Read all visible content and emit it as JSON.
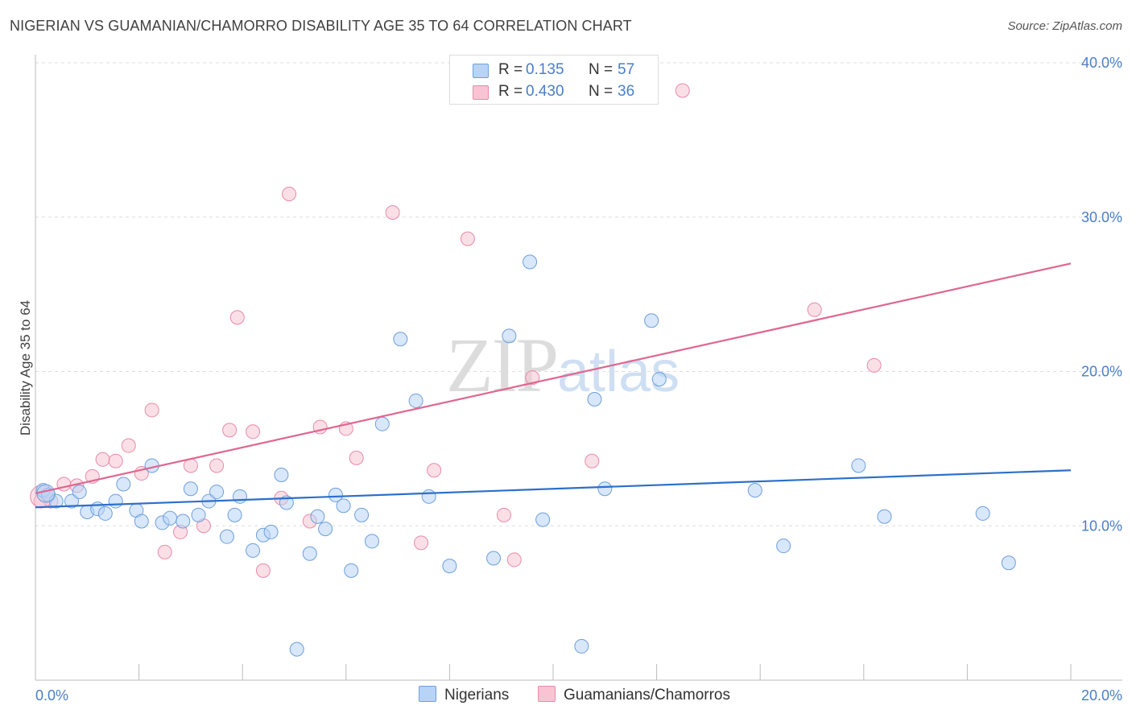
{
  "header": {
    "title": "NIGERIAN VS GUAMANIAN/CHAMORRO DISABILITY AGE 35 TO 64 CORRELATION CHART",
    "source": "Source: ZipAtlas.com"
  },
  "watermark": {
    "zip": "ZIP",
    "atlas": "atlas"
  },
  "colors": {
    "blue_fill": "#b8d3f5",
    "blue_stroke": "#6e9fdb",
    "blue_line": "#2d6fcb",
    "pink_fill": "#f8c4d4",
    "pink_stroke": "#e98aa8",
    "pink_line": "#e06690",
    "tick_text": "#4a7ec8",
    "grid": "#dddddd"
  },
  "legend": {
    "rows": [
      {
        "r_label": "R =",
        "r_value": "0.135",
        "n_label": "N =",
        "n_value": "57"
      },
      {
        "r_label": "R =",
        "r_value": "0.430",
        "n_label": "N =",
        "n_value": "36"
      }
    ]
  },
  "bottom_legend": {
    "series1": "Nigerians",
    "series2": "Guamanians/Chamorros"
  },
  "chart_data": {
    "type": "scatter",
    "title": "NIGERIAN VS GUAMANIAN/CHAMORRO DISABILITY AGE 35 TO 64 CORRELATION CHART",
    "xlabel": "",
    "ylabel": "Disability Age 35 to 64",
    "xlim": [
      0,
      20
    ],
    "ylim": [
      0,
      40
    ],
    "x_tick_labels": [
      "0.0%",
      "20.0%"
    ],
    "y_ticks": [
      10,
      20,
      30,
      40
    ],
    "y_tick_labels": [
      "10.0%",
      "20.0%",
      "30.0%",
      "40.0%"
    ],
    "grid": true,
    "legend_position": "top-center",
    "series": [
      {
        "name": "Nigerians",
        "r": 0.135,
        "n": 57,
        "trend": {
          "x": [
            0,
            20
          ],
          "y": [
            11.2,
            13.6
          ]
        },
        "points": [
          [
            0.15,
            12.3
          ],
          [
            0.25,
            12.0
          ],
          [
            0.4,
            11.6
          ],
          [
            0.7,
            11.6
          ],
          [
            0.85,
            12.2
          ],
          [
            1.0,
            10.9
          ],
          [
            1.2,
            11.1
          ],
          [
            1.35,
            10.8
          ],
          [
            1.55,
            11.6
          ],
          [
            1.7,
            12.7
          ],
          [
            1.95,
            11.0
          ],
          [
            2.05,
            10.3
          ],
          [
            2.25,
            13.9
          ],
          [
            2.45,
            10.2
          ],
          [
            2.6,
            10.5
          ],
          [
            2.85,
            10.3
          ],
          [
            3.0,
            12.4
          ],
          [
            3.15,
            10.7
          ],
          [
            3.35,
            11.6
          ],
          [
            3.5,
            12.2
          ],
          [
            3.7,
            9.3
          ],
          [
            3.85,
            10.7
          ],
          [
            3.95,
            11.9
          ],
          [
            4.2,
            8.4
          ],
          [
            4.4,
            9.4
          ],
          [
            4.55,
            9.6
          ],
          [
            4.75,
            13.3
          ],
          [
            4.85,
            11.5
          ],
          [
            5.05,
            2.0
          ],
          [
            5.3,
            8.2
          ],
          [
            5.45,
            10.6
          ],
          [
            5.6,
            9.8
          ],
          [
            5.8,
            12.0
          ],
          [
            5.95,
            11.3
          ],
          [
            6.1,
            7.1
          ],
          [
            6.3,
            10.7
          ],
          [
            6.5,
            9.0
          ],
          [
            6.7,
            16.6
          ],
          [
            7.05,
            22.1
          ],
          [
            7.35,
            18.1
          ],
          [
            7.6,
            11.9
          ],
          [
            8.0,
            7.4
          ],
          [
            8.85,
            7.9
          ],
          [
            9.15,
            22.3
          ],
          [
            9.55,
            27.1
          ],
          [
            9.8,
            10.4
          ],
          [
            10.55,
            2.2
          ],
          [
            10.8,
            18.2
          ],
          [
            11.0,
            12.4
          ],
          [
            11.9,
            23.3
          ],
          [
            12.05,
            19.5
          ],
          [
            13.9,
            12.3
          ],
          [
            14.45,
            8.7
          ],
          [
            15.9,
            13.9
          ],
          [
            16.4,
            10.6
          ],
          [
            18.3,
            10.8
          ],
          [
            18.8,
            7.6
          ]
        ]
      },
      {
        "name": "Guamanians/Chamorros",
        "r": 0.43,
        "n": 36,
        "trend": {
          "x": [
            0,
            20
          ],
          "y": [
            12.1,
            27.0
          ]
        },
        "points": [
          [
            0.1,
            11.6
          ],
          [
            0.3,
            11.6
          ],
          [
            0.55,
            12.7
          ],
          [
            0.8,
            12.6
          ],
          [
            1.1,
            13.2
          ],
          [
            1.3,
            14.3
          ],
          [
            1.55,
            14.2
          ],
          [
            1.8,
            15.2
          ],
          [
            2.05,
            13.4
          ],
          [
            2.25,
            17.5
          ],
          [
            2.5,
            8.3
          ],
          [
            2.8,
            9.6
          ],
          [
            3.0,
            13.9
          ],
          [
            3.25,
            10.0
          ],
          [
            3.5,
            13.9
          ],
          [
            3.75,
            16.2
          ],
          [
            3.9,
            23.5
          ],
          [
            4.2,
            16.1
          ],
          [
            4.4,
            7.1
          ],
          [
            4.75,
            11.8
          ],
          [
            4.9,
            31.5
          ],
          [
            5.3,
            10.3
          ],
          [
            5.5,
            16.4
          ],
          [
            6.0,
            16.3
          ],
          [
            6.2,
            14.4
          ],
          [
            6.9,
            30.3
          ],
          [
            7.45,
            8.9
          ],
          [
            7.7,
            13.6
          ],
          [
            8.35,
            28.6
          ],
          [
            9.05,
            10.7
          ],
          [
            9.25,
            7.8
          ],
          [
            9.6,
            19.6
          ],
          [
            10.75,
            14.2
          ],
          [
            12.5,
            38.2
          ],
          [
            15.05,
            24.0
          ],
          [
            16.2,
            20.4
          ]
        ]
      }
    ]
  }
}
